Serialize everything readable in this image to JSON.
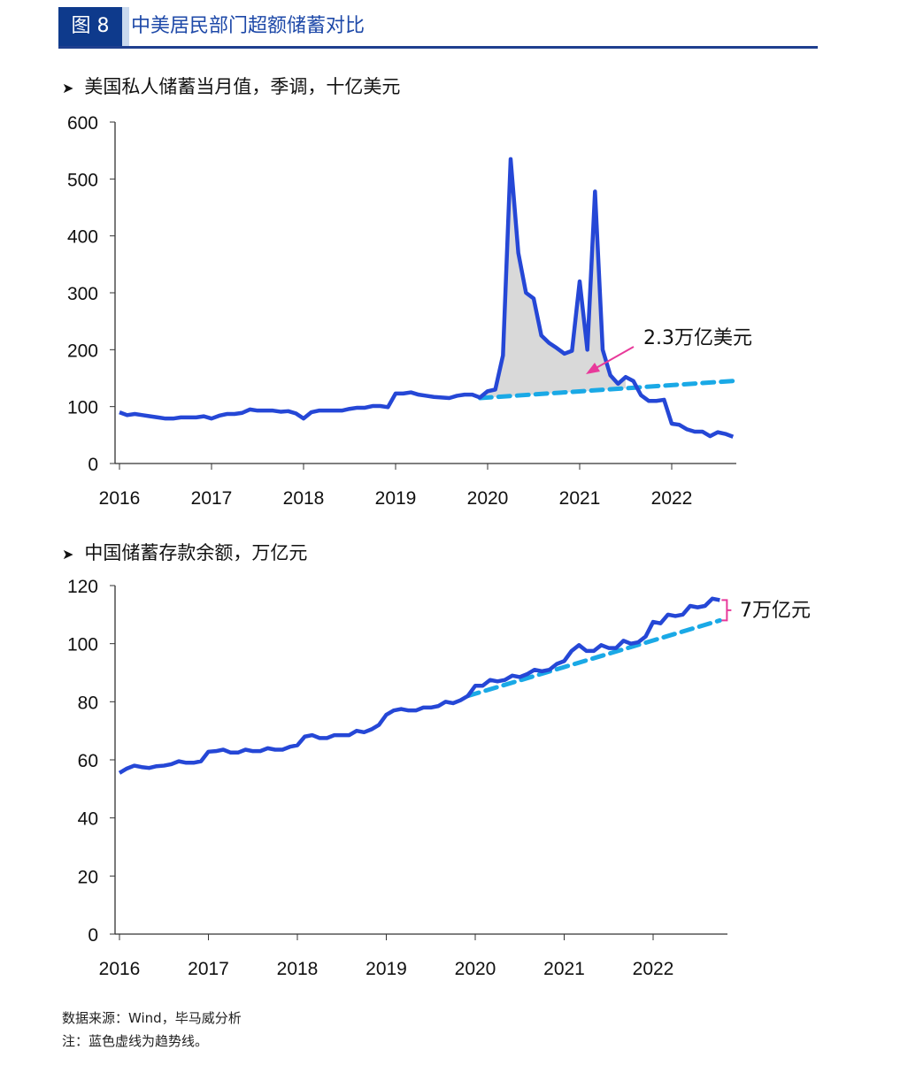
{
  "header": {
    "figure_label": "图 8",
    "title": "中美居民部门超额储蓄对比"
  },
  "chart_data": [
    {
      "type": "line",
      "title": "美国私人储蓄当月值，季调，十亿美元",
      "x_start": "2016-01",
      "frequency": "monthly",
      "xticks": [
        "2016",
        "2017",
        "2018",
        "2019",
        "2020",
        "2021",
        "2022"
      ],
      "yticks": [
        0,
        100,
        200,
        300,
        400,
        500,
        600
      ],
      "ylim": [
        0,
        600
      ],
      "grid": false,
      "series": [
        {
          "kind": "actual",
          "color": "#2547d6",
          "values": [
            90,
            85,
            87,
            85,
            83,
            81,
            79,
            79,
            81,
            81,
            81,
            83,
            79,
            84,
            87,
            87,
            89,
            95,
            93,
            93,
            93,
            91,
            92,
            88,
            79,
            90,
            93,
            93,
            93,
            93,
            96,
            98,
            98,
            101,
            101,
            99,
            123,
            123,
            125,
            121,
            119,
            117,
            116,
            115,
            119,
            121,
            121,
            116,
            127,
            130,
            190,
            535,
            370,
            300,
            290,
            225,
            212,
            203,
            193,
            198,
            320,
            200,
            478,
            200,
            155,
            140,
            152,
            145,
            120,
            110,
            110,
            112,
            70,
            68,
            60,
            56,
            56,
            48,
            55,
            52,
            47
          ]
        },
        {
          "kind": "trend",
          "color": "#1aa9e6",
          "dashed": true,
          "start": "2019-12",
          "values_start": 115,
          "values_end": 145,
          "end": "2022-09"
        }
      ],
      "shaded_area": {
        "color": "#d9d9d9",
        "between": "actual and trend, 2019-12 to 2021-06"
      },
      "annotation": {
        "text": "2.3万亿美元",
        "arrow_color": "#e8399a"
      }
    },
    {
      "type": "line",
      "title": "中国储蓄存款余额，万亿元",
      "x_start": "2016-01",
      "frequency": "monthly",
      "xticks": [
        "2016",
        "2017",
        "2018",
        "2019",
        "2020",
        "2021",
        "2022"
      ],
      "yticks": [
        0,
        20,
        40,
        60,
        80,
        100,
        120
      ],
      "ylim": [
        0,
        120
      ],
      "grid": false,
      "series": [
        {
          "kind": "actual",
          "color": "#2547d6",
          "values": [
            55.5,
            57,
            58,
            57.5,
            57.2,
            57.8,
            58,
            58.5,
            59.5,
            59,
            59,
            59.5,
            62.8,
            63,
            63.5,
            62.5,
            62.5,
            63.5,
            63,
            63,
            64,
            63.5,
            63.5,
            64.5,
            65,
            68,
            68.5,
            67.5,
            67.5,
            68.5,
            68.5,
            68.5,
            70,
            69.5,
            70.5,
            72,
            75.5,
            77,
            77.5,
            77,
            77,
            78,
            78,
            78.5,
            80,
            79.5,
            80.5,
            82,
            85.5,
            85.5,
            87.5,
            87,
            87.5,
            89,
            88.5,
            89.5,
            91,
            90.5,
            91,
            93,
            94,
            97.5,
            99.5,
            97.5,
            97.5,
            99.5,
            98.5,
            98.5,
            101,
            100,
            100.5,
            102.5,
            107.5,
            107,
            110,
            109.5,
            110,
            113,
            112.5,
            113,
            115.5,
            115
          ]
        },
        {
          "kind": "trend",
          "color": "#1aa9e6",
          "dashed": true,
          "start": "2019-12",
          "values_start": 82,
          "values_end": 108,
          "end": "2022-10"
        }
      ],
      "annotation": {
        "text": "7万亿元",
        "bracket_color": "#e8399a"
      }
    }
  ],
  "footer": {
    "source": "数据来源：Wind，毕马威分析",
    "note": "注：蓝色虚线为趋势线。"
  }
}
